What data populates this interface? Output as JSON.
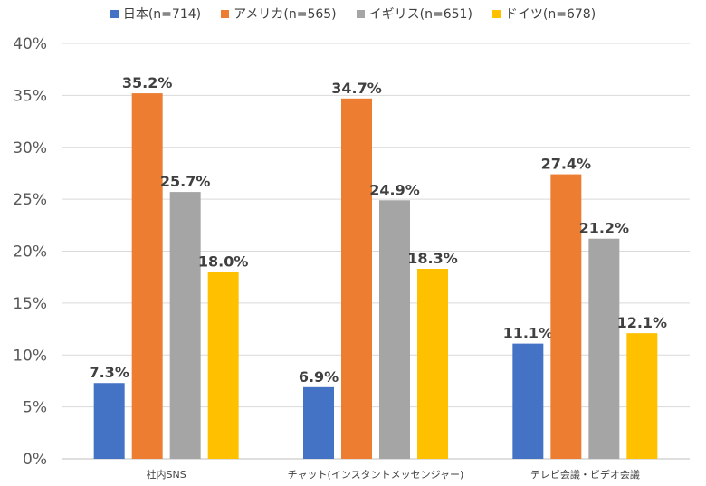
{
  "chart_data": {
    "type": "bar",
    "categories": [
      "社内SNS",
      "チャット(インスタントメッセンジャー)",
      "テレビ会議・ビデオ会議"
    ],
    "series": [
      {
        "name": "日本(n=714)",
        "color": "#4472C4",
        "values": [
          7.3,
          6.9,
          11.1
        ],
        "labels": [
          "7.3%",
          "6.9%",
          "11.1%"
        ]
      },
      {
        "name": "アメリカ(n=565)",
        "color": "#ED7D31",
        "values": [
          35.2,
          34.7,
          27.4
        ],
        "labels": [
          "35.2%",
          "34.7%",
          "27.4%"
        ]
      },
      {
        "name": "イギリス(n=651)",
        "color": "#A5A5A5",
        "values": [
          25.7,
          24.9,
          21.2
        ],
        "labels": [
          "25.7%",
          "24.9%",
          "21.2%"
        ]
      },
      {
        "name": "ドイツ(n=678)",
        "color": "#FFC000",
        "values": [
          18.0,
          18.3,
          12.1
        ],
        "labels": [
          "18.0%",
          "18.3%",
          "12.1%"
        ]
      }
    ],
    "ylim": [
      0,
      40
    ],
    "yticks": [
      0,
      5,
      10,
      15,
      20,
      25,
      30,
      35,
      40
    ],
    "ytick_labels": [
      "0%",
      "5%",
      "10%",
      "15%",
      "20%",
      "25%",
      "30%",
      "35%",
      "40%"
    ],
    "legend_position": "top",
    "grid": true
  }
}
